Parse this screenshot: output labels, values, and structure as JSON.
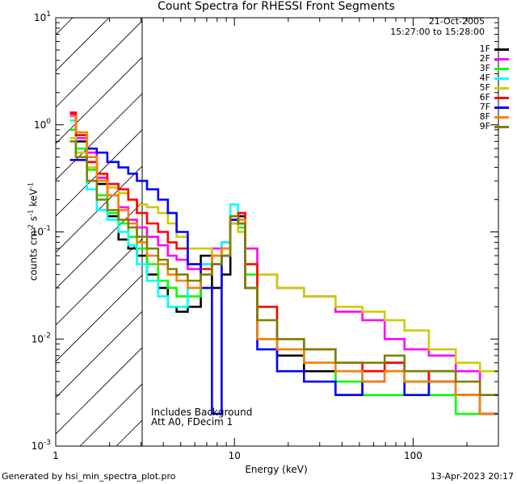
{
  "chart_data": {
    "type": "line",
    "title": "Count Spectra for RHESSI Front Segments",
    "xlabel": "Energy (keV)",
    "ylabel": "counts cm-2 s-1 keV-1",
    "xscale": "log",
    "yscale": "log",
    "xlim": [
      1,
      300
    ],
    "ylim": [
      0.001,
      10
    ],
    "x_tick_labels": [
      "1",
      "10",
      "100"
    ],
    "y_tick_labels": [
      "10-3",
      "10-2",
      "10-1",
      "100",
      "101"
    ],
    "shaded_region": {
      "x_from": 1,
      "x_to": 3,
      "pattern": "diagonal hatch"
    },
    "annotations": [
      "Includes Background",
      "Att A0, FDecim 1"
    ],
    "date": "21-Oct-2005",
    "time_range": "15:27:00 to 15:28:00",
    "footer_left": "Generated by hsi_min_spectra_plot.pro",
    "footer_right": "13-Apr-2023 20:17",
    "series": [
      {
        "name": "1F",
        "color": "#000000",
        "x": [
          1.2,
          1.4,
          1.6,
          1.8,
          2.1,
          2.4,
          2.7,
          3.0,
          3.5,
          4.0,
          4.5,
          5.0,
          6.0,
          7.0,
          8.0,
          9.0,
          10.0,
          11.0,
          12.0,
          15.0,
          20.0,
          30.0,
          45.0,
          60.0,
          80.0,
          100.0,
          150.0,
          200.0,
          280.0
        ],
        "values": [
          1.2,
          0.7,
          0.45,
          0.28,
          0.14,
          0.085,
          0.07,
          0.06,
          0.04,
          0.03,
          0.02,
          0.018,
          0.02,
          0.06,
          0.03,
          0.04,
          0.12,
          0.14,
          0.03,
          0.01,
          0.007,
          0.005,
          0.003,
          0.005,
          0.006,
          0.004,
          0.005,
          0.003,
          0.002
        ]
      },
      {
        "name": "2F",
        "color": "#ff00ff",
        "x": [
          1.2,
          1.4,
          1.6,
          1.8,
          2.1,
          2.4,
          2.7,
          3.0,
          3.5,
          4.0,
          4.5,
          5.0,
          6.0,
          7.0,
          8.0,
          9.0,
          10.0,
          11.0,
          12.0,
          15.0,
          20.0,
          30.0,
          45.0,
          60.0,
          80.0,
          100.0,
          150.0,
          200.0,
          280.0
        ],
        "values": [
          1.25,
          0.75,
          0.55,
          0.32,
          0.22,
          0.17,
          0.13,
          0.11,
          0.09,
          0.075,
          0.06,
          0.055,
          0.045,
          0.05,
          0.07,
          0.08,
          0.13,
          0.12,
          0.07,
          0.04,
          0.03,
          0.025,
          0.018,
          0.015,
          0.01,
          0.008,
          0.007,
          0.005,
          0.003
        ]
      },
      {
        "name": "3F",
        "color": "#00ff00",
        "x": [
          1.2,
          1.4,
          1.6,
          1.8,
          2.1,
          2.4,
          2.7,
          3.0,
          3.5,
          4.0,
          4.5,
          5.0,
          6.0,
          7.0,
          8.0,
          9.0,
          10.0,
          11.0,
          12.0,
          15.0,
          20.0,
          30.0,
          45.0,
          60.0,
          80.0,
          100.0,
          150.0,
          200.0,
          280.0
        ],
        "values": [
          0.9,
          0.6,
          0.38,
          0.22,
          0.15,
          0.12,
          0.09,
          0.07,
          0.05,
          0.035,
          0.03,
          0.025,
          0.025,
          0.04,
          0.05,
          0.06,
          0.12,
          0.11,
          0.04,
          0.02,
          0.01,
          0.006,
          0.004,
          0.003,
          0.003,
          0.004,
          0.003,
          0.002,
          0.002
        ]
      },
      {
        "name": "4F",
        "color": "#00ffff",
        "x": [
          1.2,
          1.4,
          1.6,
          1.8,
          2.1,
          2.4,
          2.7,
          3.0,
          3.5,
          4.0,
          4.5,
          5.0,
          6.0,
          7.0,
          8.0,
          9.0,
          10.0,
          11.0,
          12.0,
          15.0,
          20.0,
          30.0,
          45.0,
          60.0,
          80.0,
          100.0,
          150.0,
          200.0,
          280.0
        ],
        "values": [
          1.1,
          0.55,
          0.25,
          0.16,
          0.13,
          0.1,
          0.075,
          0.05,
          0.035,
          0.025,
          0.02,
          0.02,
          0.03,
          0.05,
          0.06,
          0.08,
          0.18,
          0.12,
          0.03,
          0.01,
          0.008,
          0.006,
          0.005,
          0.004,
          0.005,
          0.004,
          0.004,
          0.003,
          0.002
        ]
      },
      {
        "name": "5F",
        "color": "#cccc00",
        "x": [
          1.2,
          1.4,
          1.6,
          1.8,
          2.1,
          2.4,
          2.7,
          3.0,
          3.5,
          4.0,
          4.5,
          5.0,
          6.0,
          7.0,
          8.0,
          9.0,
          10.0,
          11.0,
          12.0,
          15.0,
          20.0,
          30.0,
          45.0,
          60.0,
          80.0,
          100.0,
          150.0,
          200.0,
          280.0
        ],
        "values": [
          0.75,
          0.55,
          0.4,
          0.3,
          0.26,
          0.23,
          0.2,
          0.18,
          0.17,
          0.15,
          0.12,
          0.09,
          0.07,
          0.07,
          0.06,
          0.06,
          0.12,
          0.1,
          0.05,
          0.04,
          0.03,
          0.025,
          0.02,
          0.018,
          0.015,
          0.012,
          0.008,
          0.006,
          0.005
        ]
      },
      {
        "name": "6F",
        "color": "#ff0000",
        "x": [
          1.2,
          1.4,
          1.6,
          1.8,
          2.1,
          2.4,
          2.7,
          3.0,
          3.5,
          4.0,
          4.5,
          5.0,
          6.0,
          7.0,
          8.0,
          9.0,
          10.0,
          11.0,
          12.0,
          15.0,
          20.0,
          30.0,
          45.0,
          60.0,
          80.0,
          100.0,
          150.0,
          200.0,
          280.0
        ],
        "values": [
          1.3,
          0.8,
          0.45,
          0.35,
          0.28,
          0.25,
          0.2,
          0.15,
          0.12,
          0.1,
          0.08,
          0.07,
          0.05,
          0.045,
          0.05,
          0.07,
          0.13,
          0.15,
          0.05,
          0.02,
          0.01,
          0.008,
          0.006,
          0.005,
          0.006,
          0.005,
          0.004,
          0.003,
          0.002
        ]
      },
      {
        "name": "7F",
        "color": "#0000ff",
        "x": [
          1.2,
          1.4,
          1.6,
          1.8,
          2.1,
          2.4,
          2.7,
          3.0,
          3.5,
          4.0,
          4.5,
          5.0,
          6.0,
          7.0,
          8.0,
          9.0,
          10.0,
          11.0,
          12.0,
          15.0,
          20.0,
          30.0,
          45.0,
          60.0,
          80.0,
          100.0,
          150.0,
          200.0,
          280.0
        ],
        "values": [
          0.47,
          0.47,
          0.6,
          0.55,
          0.45,
          0.4,
          0.35,
          0.3,
          0.25,
          0.2,
          0.15,
          0.1,
          0.05,
          0.03,
          0.002,
          0.06,
          0.13,
          0.12,
          0.03,
          0.008,
          0.005,
          0.004,
          0.003,
          0.004,
          0.005,
          0.003,
          0.004,
          0.003,
          0.002
        ]
      },
      {
        "name": "8F",
        "color": "#ff8000",
        "x": [
          1.2,
          1.4,
          1.6,
          1.8,
          2.1,
          2.4,
          2.7,
          3.0,
          3.5,
          4.0,
          4.5,
          5.0,
          6.0,
          7.0,
          8.0,
          9.0,
          10.0,
          11.0,
          12.0,
          15.0,
          20.0,
          30.0,
          45.0,
          60.0,
          80.0,
          100.0,
          150.0,
          200.0,
          280.0
        ],
        "values": [
          1.2,
          0.85,
          0.5,
          0.3,
          0.22,
          0.16,
          0.12,
          0.08,
          0.06,
          0.05,
          0.04,
          0.035,
          0.03,
          0.04,
          0.06,
          0.07,
          0.14,
          0.13,
          0.03,
          0.01,
          0.008,
          0.006,
          0.005,
          0.004,
          0.005,
          0.004,
          0.004,
          0.003,
          0.002
        ]
      },
      {
        "name": "9F",
        "color": "#808000",
        "x": [
          1.2,
          1.4,
          1.6,
          1.8,
          2.1,
          2.4,
          2.7,
          3.0,
          3.5,
          4.0,
          4.5,
          5.0,
          6.0,
          7.0,
          8.0,
          9.0,
          10.0,
          11.0,
          12.0,
          15.0,
          20.0,
          30.0,
          45.0,
          60.0,
          80.0,
          100.0,
          150.0,
          200.0,
          280.0
        ],
        "values": [
          0.7,
          0.5,
          0.3,
          0.2,
          0.16,
          0.13,
          0.11,
          0.09,
          0.07,
          0.055,
          0.045,
          0.04,
          0.035,
          0.04,
          0.05,
          0.06,
          0.14,
          0.12,
          0.03,
          0.015,
          0.01,
          0.008,
          0.006,
          0.006,
          0.007,
          0.005,
          0.005,
          0.004,
          0.003
        ]
      }
    ]
  }
}
